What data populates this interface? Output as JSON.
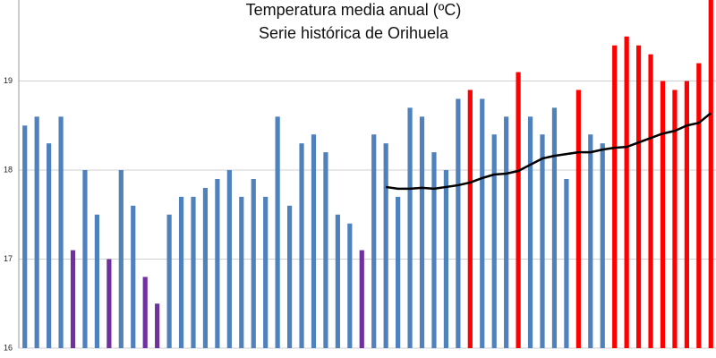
{
  "chart_data": {
    "type": "bar",
    "title": "Temperatura media anual (ºC)",
    "subtitle": "Serie histórica de Orihuela",
    "categories": [
      null,
      null,
      null,
      null,
      null,
      null,
      null,
      null,
      null,
      null,
      null,
      null,
      null,
      null,
      null,
      null,
      null,
      null,
      null,
      null,
      null,
      null,
      null,
      null,
      null,
      null,
      null,
      null,
      null,
      null,
      null,
      null,
      null,
      null,
      null,
      null,
      null,
      null,
      null,
      null,
      null,
      null,
      null,
      null,
      null,
      null,
      null,
      null,
      null,
      null,
      null,
      null,
      null,
      null,
      null,
      null,
      null,
      null
    ],
    "values": [
      18.5,
      18.6,
      18.3,
      18.6,
      17.1,
      18.0,
      17.5,
      17.0,
      18.0,
      17.6,
      16.8,
      16.5,
      17.5,
      17.7,
      17.7,
      17.8,
      17.9,
      18.0,
      17.7,
      17.9,
      17.7,
      18.6,
      17.6,
      18.3,
      18.4,
      18.2,
      17.5,
      17.4,
      17.1,
      18.4,
      18.3,
      17.7,
      18.7,
      18.6,
      18.2,
      18.0,
      18.8,
      18.9,
      18.8,
      18.4,
      18.6,
      19.1,
      18.6,
      18.4,
      18.7,
      17.9,
      18.9,
      18.4,
      18.3,
      19.4,
      19.5,
      19.4,
      19.3,
      19.0,
      18.9,
      19.0,
      19.2,
      20.0
    ],
    "colors": [
      "#4f81bd",
      "#4f81bd",
      "#4f81bd",
      "#4f81bd",
      "#7030a0",
      "#4f81bd",
      "#4f81bd",
      "#7030a0",
      "#4f81bd",
      "#4f81bd",
      "#7030a0",
      "#7030a0",
      "#4f81bd",
      "#4f81bd",
      "#4f81bd",
      "#4f81bd",
      "#4f81bd",
      "#4f81bd",
      "#4f81bd",
      "#4f81bd",
      "#4f81bd",
      "#4f81bd",
      "#4f81bd",
      "#4f81bd",
      "#4f81bd",
      "#4f81bd",
      "#4f81bd",
      "#4f81bd",
      "#7030a0",
      "#4f81bd",
      "#4f81bd",
      "#4f81bd",
      "#4f81bd",
      "#4f81bd",
      "#4f81bd",
      "#4f81bd",
      "#4f81bd",
      "#ff0000",
      "#4f81bd",
      "#4f81bd",
      "#4f81bd",
      "#ff0000",
      "#4f81bd",
      "#4f81bd",
      "#4f81bd",
      "#4f81bd",
      "#ff0000",
      "#4f81bd",
      "#4f81bd",
      "#ff0000",
      "#ff0000",
      "#ff0000",
      "#ff0000",
      "#ff0000",
      "#ff0000",
      "#ff0000",
      "#ff0000",
      "#ff0000"
    ],
    "trend": {
      "color": "#000000",
      "values": [
        null,
        null,
        null,
        null,
        null,
        null,
        null,
        null,
        null,
        null,
        null,
        null,
        null,
        null,
        null,
        null,
        null,
        null,
        null,
        null,
        null,
        null,
        null,
        null,
        null,
        null,
        null,
        null,
        null,
        null,
        17.81,
        17.79,
        17.79,
        17.8,
        17.79,
        17.81,
        17.83,
        17.86,
        17.91,
        17.95,
        17.96,
        17.99,
        18.06,
        18.13,
        18.16,
        18.18,
        18.2,
        18.2,
        18.23,
        18.25,
        18.26,
        18.31,
        18.36,
        18.41,
        18.44,
        18.5,
        18.53,
        18.64
      ]
    },
    "ylim": [
      16,
      19.91
    ],
    "yticks": [
      16,
      17,
      18,
      19
    ],
    "grid": true
  }
}
